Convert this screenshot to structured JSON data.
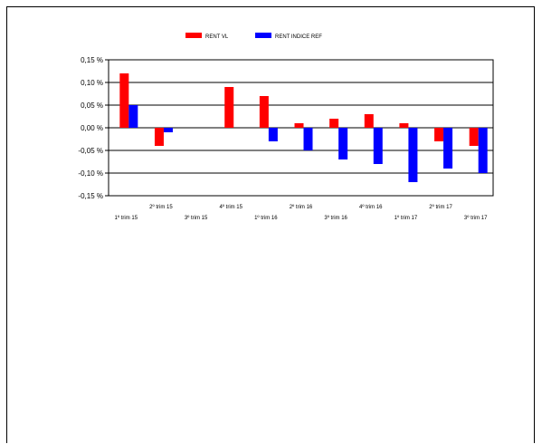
{
  "chart_data": {
    "type": "bar",
    "categories": [
      "1º trim 15",
      "2º trim 15",
      "3º trim 15",
      "4º trim 15",
      "1º trim 16",
      "2º trim 16",
      "3º trim 16",
      "4º trim 16",
      "1º trim 17",
      "2º trim 17",
      "3º trim 17"
    ],
    "series": [
      {
        "name": "RENT VL",
        "color": "#ff0000",
        "values": [
          0.12,
          -0.04,
          null,
          0.09,
          0.07,
          0.01,
          0.02,
          0.03,
          0.01,
          -0.03,
          -0.04
        ]
      },
      {
        "name": "RENT INDICE REF",
        "color": "#0000ff",
        "values": [
          0.05,
          -0.01,
          null,
          null,
          -0.03,
          -0.05,
          -0.07,
          -0.08,
          -0.12,
          -0.09,
          -0.1
        ]
      }
    ],
    "yticks": [
      "0,15 %",
      "0,10 %",
      "0,05 %",
      "0,00 %",
      "-0,05 %",
      "-0,10 %",
      "-0,15 %"
    ],
    "ytick_values": [
      0.15,
      0.1,
      0.05,
      0.0,
      -0.05,
      -0.1,
      -0.15
    ],
    "ylim": [
      -0.15,
      0.15
    ],
    "grid": true,
    "legend": "top-center",
    "title": "",
    "xlabel": "",
    "ylabel": ""
  }
}
